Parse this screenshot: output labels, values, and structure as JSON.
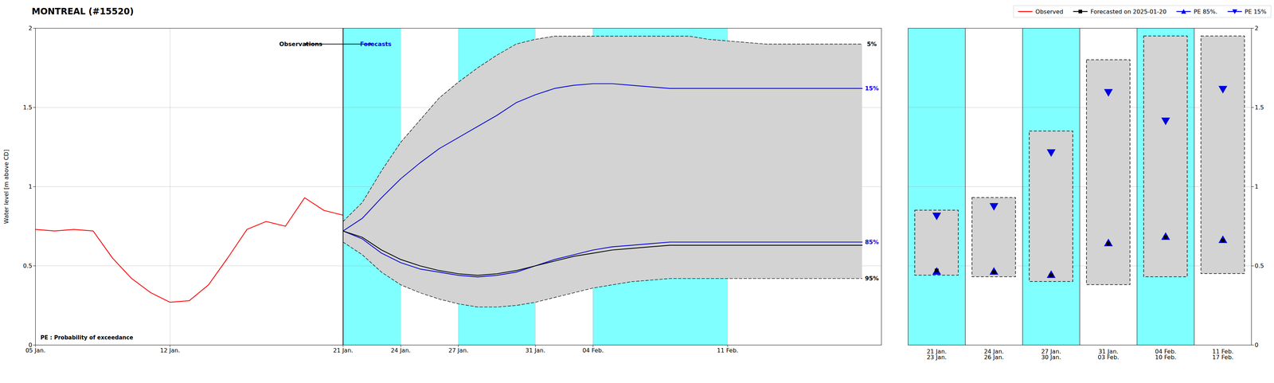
{
  "chart_data": [
    {
      "type": "line",
      "title": "MONTREAL (#15520)",
      "ylabel": "Water level [m above CD]",
      "xlim": [
        0,
        44
      ],
      "xticks": [
        {
          "value": 0,
          "label": "05 Jan."
        },
        {
          "value": 7,
          "label": "12 Jan."
        },
        {
          "value": 16,
          "label": "21 Jan."
        },
        {
          "value": 19,
          "label": "24 Jan."
        },
        {
          "value": 22,
          "label": "27 Jan."
        },
        {
          "value": 26,
          "label": "31 Jan."
        },
        {
          "value": 29,
          "label": "04 Feb."
        },
        {
          "value": 36,
          "label": "11 Feb."
        }
      ],
      "ylim": [
        0.0,
        2.0
      ],
      "yticks": [
        0.0,
        0.5,
        1.0,
        1.5,
        2.0
      ],
      "grid": true,
      "legend": "upper right",
      "bands": {
        "color": "#7fffff",
        "ranges": [
          [
            16,
            19
          ],
          [
            22,
            26
          ],
          [
            29,
            36
          ]
        ]
      },
      "vline": 16,
      "series": [
        {
          "name": "Observed",
          "color": "#ff0000",
          "x": [
            0,
            1,
            2,
            3,
            4,
            5,
            6,
            7,
            8,
            9,
            10,
            11,
            12,
            13,
            14,
            15,
            16
          ],
          "values": [
            0.73,
            0.72,
            0.73,
            0.72,
            0.55,
            0.42,
            0.33,
            0.27,
            0.28,
            0.38,
            0.55,
            0.73,
            0.78,
            0.75,
            0.93,
            0.85,
            0.82
          ]
        },
        {
          "name": "Forecasted on 2025-01-20",
          "color": "#000000",
          "x": [
            16,
            17,
            18,
            19,
            20,
            21,
            22,
            23,
            24,
            25,
            26,
            27,
            28,
            29,
            30,
            31,
            32,
            33,
            34,
            35,
            36,
            37,
            38,
            39,
            40,
            41,
            42,
            43
          ],
          "values": [
            0.72,
            0.68,
            0.6,
            0.54,
            0.5,
            0.47,
            0.45,
            0.44,
            0.45,
            0.47,
            0.5,
            0.53,
            0.56,
            0.58,
            0.6,
            0.61,
            0.62,
            0.63,
            0.63,
            0.63,
            0.63,
            0.63,
            0.63,
            0.63,
            0.63,
            0.63,
            0.63,
            0.63
          ]
        },
        {
          "name": "PE 85%.",
          "color": "#0000dd",
          "x": [
            16,
            17,
            18,
            19,
            20,
            21,
            22,
            23,
            24,
            25,
            26,
            27,
            28,
            29,
            30,
            31,
            32,
            33,
            34,
            35,
            36,
            37,
            38,
            39,
            40,
            41,
            42,
            43
          ],
          "values": [
            0.72,
            0.67,
            0.58,
            0.52,
            0.48,
            0.46,
            0.44,
            0.43,
            0.44,
            0.46,
            0.5,
            0.54,
            0.57,
            0.6,
            0.62,
            0.63,
            0.64,
            0.65,
            0.65,
            0.65,
            0.65,
            0.65,
            0.65,
            0.65,
            0.65,
            0.65,
            0.65,
            0.65
          ]
        },
        {
          "name": "PE 15%",
          "color": "#0000dd",
          "x": [
            16,
            17,
            18,
            19,
            20,
            21,
            22,
            23,
            24,
            25,
            26,
            27,
            28,
            29,
            30,
            31,
            32,
            33,
            34,
            35,
            36,
            37,
            38,
            39,
            40,
            41,
            42,
            43
          ],
          "values": [
            0.72,
            0.8,
            0.93,
            1.05,
            1.15,
            1.24,
            1.31,
            1.38,
            1.45,
            1.53,
            1.58,
            1.62,
            1.64,
            1.65,
            1.65,
            1.64,
            1.63,
            1.62,
            1.62,
            1.62,
            1.62,
            1.62,
            1.62,
            1.62,
            1.62,
            1.62,
            1.62,
            1.62
          ]
        },
        {
          "type": "area",
          "color": "#d3d3d3",
          "line_style": "dashed",
          "x": [
            16,
            17,
            18,
            19,
            20,
            21,
            22,
            23,
            24,
            25,
            26,
            27,
            28,
            29,
            30,
            31,
            32,
            33,
            34,
            35,
            36,
            37,
            38,
            39,
            40,
            41,
            42,
            43
          ],
          "low": [
            0.65,
            0.57,
            0.46,
            0.38,
            0.33,
            0.29,
            0.26,
            0.24,
            0.24,
            0.25,
            0.27,
            0.3,
            0.33,
            0.36,
            0.38,
            0.4,
            0.41,
            0.42,
            0.42,
            0.42,
            0.42,
            0.42,
            0.42,
            0.42,
            0.42,
            0.42,
            0.42,
            0.42
          ],
          "high": [
            0.78,
            0.9,
            1.1,
            1.28,
            1.42,
            1.56,
            1.66,
            1.75,
            1.83,
            1.9,
            1.93,
            1.95,
            1.95,
            1.95,
            1.95,
            1.95,
            1.95,
            1.95,
            1.95,
            1.93,
            1.92,
            1.91,
            1.9,
            1.9,
            1.9,
            1.9,
            1.9,
            1.9
          ]
        }
      ],
      "annotations": [
        {
          "text": "5%",
          "x": 43.5,
          "y": 1.9,
          "color": "#000000"
        },
        {
          "text": "15%",
          "x": 43.5,
          "y": 1.62,
          "color": "#0000dd"
        },
        {
          "text": "85%",
          "x": 43.5,
          "y": 0.65,
          "color": "#0000dd"
        },
        {
          "text": "95%",
          "x": 43.5,
          "y": 0.42,
          "color": "#000000"
        },
        {
          "text": "Observations",
          "x": 13.8,
          "y": 1.9,
          "color": "#000000"
        },
        {
          "text": "Forecasts",
          "x": 17.7,
          "y": 1.9,
          "color": "#0000dd"
        }
      ],
      "arrows": [
        {
          "x1": 14.0,
          "x2": 17.5,
          "y": 1.9
        }
      ],
      "note": "PE : Probability of exceedance"
    },
    {
      "type": "range",
      "categories": [
        "21 Jan.\n23 Jan.",
        "24 Jan.\n26 Jan.",
        "27 Jan.\n30 Jan.",
        "31 Jan.\n03 Feb.",
        "04 Feb.\n10 Feb.",
        "11 Feb.\n17 Feb."
      ],
      "ylim": [
        0.0,
        2.0
      ],
      "yticks": [
        0.0,
        0.5,
        1.0,
        1.5,
        2.0
      ],
      "grid": true,
      "highlight": {
        "color": "#7fffff",
        "flags": [
          true,
          false,
          true,
          false,
          true,
          false
        ]
      },
      "range": {
        "color": "#d3d3d3",
        "line_style": "dashed",
        "low": [
          0.44,
          0.43,
          0.4,
          0.38,
          0.43,
          0.45
        ],
        "high": [
          0.85,
          0.93,
          1.35,
          1.8,
          1.95,
          1.95
        ]
      },
      "series": [
        {
          "name": "PE 85%.",
          "color": "#0000dd",
          "marker": "triangle-up",
          "values": [
            0.46,
            0.46,
            0.44,
            0.64,
            0.68,
            0.66
          ]
        },
        {
          "name": "PE 15%",
          "color": "#0000dd",
          "marker": "triangle-down",
          "values": [
            0.82,
            0.88,
            1.22,
            1.6,
            1.42,
            1.62
          ]
        },
        {
          "name": "Forecasted on 2025-01-20",
          "color": "#000000",
          "marker": "square",
          "values": [
            0.47,
            0.46,
            0.44,
            0.64,
            0.68,
            0.66
          ]
        }
      ]
    }
  ]
}
